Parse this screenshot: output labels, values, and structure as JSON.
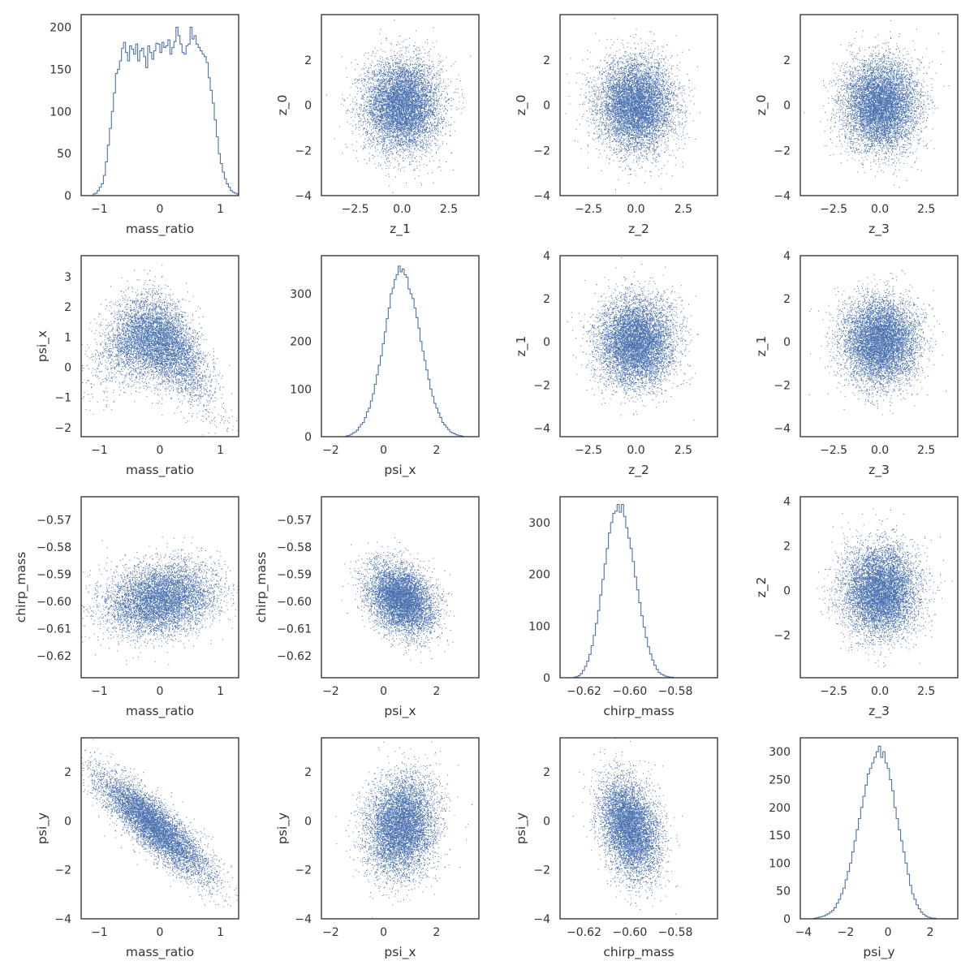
{
  "chart_data": {
    "type": "scatter",
    "layout": "pair-plot 4x4 (lower: scatter, diagonal: step histogram, upper: scatter of latent z)",
    "color": "#4c72b0",
    "background": "#ffffff",
    "grid": false,
    "panels": [
      {
        "id": "r0c0",
        "type": "histogram",
        "xlabel": "mass_ratio",
        "ylabel": "",
        "xlim": [
          -1.3,
          1.3
        ],
        "ylim": [
          0,
          215
        ],
        "xticks": [
          -1,
          0,
          1
        ],
        "xticklabels": [
          "−1",
          "0",
          "1"
        ],
        "yticks": [
          0,
          50,
          100,
          150,
          200
        ],
        "yticklabels": [
          "0",
          "50",
          "100",
          "150",
          "200"
        ],
        "bins": {
          "start": -1.1,
          "width": 0.0333,
          "counts": [
            2,
            3,
            6,
            10,
            14,
            24,
            40,
            60,
            80,
            100,
            122,
            145,
            150,
            160,
            175,
            182,
            170,
            160,
            178,
            174,
            168,
            180,
            160,
            172,
            175,
            165,
            152,
            178,
            170,
            162,
            172,
            181,
            180,
            170,
            182,
            176,
            178,
            185,
            168,
            176,
            183,
            200,
            190,
            180,
            170,
            168,
            178,
            180,
            200,
            186,
            190,
            180,
            176,
            172,
            168,
            165,
            158,
            140,
            125,
            110,
            90,
            70,
            50,
            38,
            28,
            20,
            14,
            10,
            6,
            4,
            3,
            2
          ]
        }
      },
      {
        "id": "r0c1",
        "type": "scatter",
        "xlabel": "z_1",
        "ylabel": "z_0",
        "xlim": [
          -4.3,
          4.1
        ],
        "ylim": [
          -4.0,
          4.0
        ],
        "xticks": [
          -2.5,
          0,
          2.5
        ],
        "xticklabels": [
          "−2.5",
          "0.0",
          "2.5"
        ],
        "yticks": [
          -4,
          -2,
          0,
          2
        ],
        "yticklabels": [
          "−4",
          "−2",
          "0",
          "2"
        ],
        "dist": {
          "mx": 0,
          "my": 0,
          "sx": 1,
          "sy": 1,
          "rho": 0,
          "n": 7000
        }
      },
      {
        "id": "r0c2",
        "type": "scatter",
        "xlabel": "z_2",
        "ylabel": "z_0",
        "xlim": [
          -4.0,
          4.3
        ],
        "ylim": [
          -4.0,
          4.0
        ],
        "xticks": [
          -2.5,
          0,
          2.5
        ],
        "xticklabels": [
          "−2.5",
          "0.0",
          "2.5"
        ],
        "yticks": [
          -4,
          -2,
          0,
          2
        ],
        "yticklabels": [
          "−4",
          "−2",
          "0",
          "2"
        ],
        "dist": {
          "mx": 0,
          "my": 0,
          "sx": 1,
          "sy": 1,
          "rho": 0,
          "n": 7000
        }
      },
      {
        "id": "r0c3",
        "type": "scatter",
        "xlabel": "z_3",
        "ylabel": "z_0",
        "xlim": [
          -4.3,
          4.2
        ],
        "ylim": [
          -4.0,
          4.0
        ],
        "xticks": [
          -2.5,
          0,
          2.5
        ],
        "xticklabels": [
          "−2.5",
          "0.0",
          "2.5"
        ],
        "yticks": [
          -4,
          -2,
          0,
          2
        ],
        "yticklabels": [
          "−4",
          "−2",
          "0",
          "2"
        ],
        "dist": {
          "mx": 0,
          "my": 0,
          "sx": 1,
          "sy": 1,
          "rho": 0,
          "n": 7000
        }
      },
      {
        "id": "r1c0",
        "type": "scatter",
        "xlabel": "mass_ratio",
        "ylabel": "psi_x",
        "xlim": [
          -1.3,
          1.3
        ],
        "ylim": [
          -2.3,
          3.7
        ],
        "xticks": [
          -1,
          0,
          1
        ],
        "xticklabels": [
          "−1",
          "0",
          "1"
        ],
        "yticks": [
          -2,
          -1,
          0,
          1,
          2,
          3
        ],
        "yticklabels": [
          "−2",
          "−1",
          "0",
          "1",
          "2",
          "3"
        ],
        "dist": {
          "mx": -0.05,
          "my": 0.7,
          "sx": 0.42,
          "sy": 0.75,
          "rho": -0.35,
          "curve": -1.3,
          "n": 6500
        }
      },
      {
        "id": "r1c1",
        "type": "histogram",
        "xlabel": "psi_x",
        "ylabel": "",
        "xlim": [
          -2.35,
          3.6
        ],
        "ylim": [
          0,
          380
        ],
        "xticks": [
          -2,
          0,
          2
        ],
        "xticklabels": [
          "−2",
          "0",
          "2"
        ],
        "yticks": [
          0,
          100,
          200,
          300
        ],
        "yticklabels": [
          "0",
          "100",
          "200",
          "300"
        ],
        "bins": {
          "start": -1.4,
          "width": 0.075,
          "counts": [
            2,
            3,
            5,
            8,
            10,
            14,
            20,
            26,
            30,
            40,
            52,
            60,
            75,
            90,
            110,
            130,
            150,
            170,
            195,
            220,
            248,
            270,
            300,
            312,
            330,
            340,
            358,
            346,
            352,
            340,
            335,
            310,
            300,
            290,
            270,
            250,
            228,
            200,
            180,
            160,
            140,
            120,
            100,
            85,
            70,
            60,
            50,
            40,
            30,
            25,
            20,
            15,
            10,
            8,
            6,
            4,
            3,
            2,
            1
          ]
        }
      },
      {
        "id": "r1c2",
        "type": "scatter",
        "xlabel": "z_2",
        "ylabel": "z_1",
        "xlim": [
          -4.0,
          4.3
        ],
        "ylim": [
          -4.4,
          4.0
        ],
        "xticks": [
          -2.5,
          0,
          2.5
        ],
        "xticklabels": [
          "−2.5",
          "0.0",
          "2.5"
        ],
        "yticks": [
          -4,
          -2,
          0,
          2,
          4
        ],
        "yticklabels": [
          "−4",
          "−2",
          "0",
          "2",
          "4"
        ],
        "dist": {
          "mx": 0,
          "my": 0,
          "sx": 1,
          "sy": 1,
          "rho": 0,
          "n": 7000
        }
      },
      {
        "id": "r1c3",
        "type": "scatter",
        "xlabel": "z_3",
        "ylabel": "z_1",
        "xlim": [
          -4.3,
          4.2
        ],
        "ylim": [
          -4.4,
          4.0
        ],
        "xticks": [
          -2.5,
          0,
          2.5
        ],
        "xticklabels": [
          "−2.5",
          "0.0",
          "2.5"
        ],
        "yticks": [
          -4,
          -2,
          0,
          2,
          4
        ],
        "yticklabels": [
          "−4",
          "−2",
          "0",
          "2",
          "4"
        ],
        "dist": {
          "mx": 0,
          "my": 0,
          "sx": 1,
          "sy": 1,
          "rho": 0,
          "n": 7000
        }
      },
      {
        "id": "r2c0",
        "type": "scatter",
        "xlabel": "mass_ratio",
        "ylabel": "chirp_mass",
        "xlim": [
          -1.3,
          1.3
        ],
        "ylim": [
          -0.628,
          -0.5615
        ],
        "xticks": [
          -1,
          0,
          1
        ],
        "xticklabels": [
          "−1",
          "0",
          "1"
        ],
        "yticks": [
          -0.62,
          -0.61,
          -0.6,
          -0.59,
          -0.58,
          -0.57
        ],
        "yticklabels": [
          "−0.62",
          "−0.61",
          "−0.60",
          "−0.59",
          "−0.58",
          "−0.57"
        ],
        "dist": {
          "mx": 0,
          "my": -0.599,
          "sx": 0.45,
          "sy": 0.0065,
          "rho": 0.18,
          "n": 6000
        }
      },
      {
        "id": "r2c1",
        "type": "scatter",
        "xlabel": "psi_x",
        "ylabel": "chirp_mass",
        "xlim": [
          -2.35,
          3.6
        ],
        "ylim": [
          -0.628,
          -0.5615
        ],
        "xticks": [
          -2,
          0,
          2
        ],
        "xticklabels": [
          "−2",
          "0",
          "2"
        ],
        "yticks": [
          -0.62,
          -0.61,
          -0.6,
          -0.59,
          -0.58,
          -0.57
        ],
        "yticklabels": [
          "−0.62",
          "−0.61",
          "−0.60",
          "−0.59",
          "−0.58",
          "−0.57"
        ],
        "dist": {
          "mx": 0.65,
          "my": -0.599,
          "sx": 0.62,
          "sy": 0.0065,
          "rho": -0.3,
          "n": 6000
        }
      },
      {
        "id": "r2c2",
        "type": "histogram",
        "xlabel": "chirp_mass",
        "ylabel": "",
        "xlim": [
          -0.6305,
          -0.5615
        ],
        "ylim": [
          0,
          350
        ],
        "xticks": [
          -0.62,
          -0.6,
          -0.58
        ],
        "xticklabels": [
          "−0.62",
          "−0.60",
          "−0.58"
        ],
        "yticks": [
          0,
          100,
          200,
          300
        ],
        "yticklabels": [
          "0",
          "100",
          "200",
          "300"
        ],
        "bins": {
          "start": -0.6245,
          "width": 0.00095,
          "counts": [
            1,
            2,
            4,
            8,
            14,
            22,
            32,
            45,
            62,
            82,
            105,
            130,
            160,
            190,
            220,
            250,
            280,
            300,
            318,
            322,
            335,
            320,
            335,
            312,
            290,
            270,
            250,
            225,
            195,
            170,
            145,
            120,
            98,
            78,
            60,
            46,
            34,
            24,
            16,
            10,
            7,
            5,
            3,
            2,
            1,
            1
          ]
        }
      },
      {
        "id": "r2c3",
        "type": "scatter",
        "xlabel": "z_3",
        "ylabel": "z_2",
        "xlim": [
          -4.3,
          4.2
        ],
        "ylim": [
          -3.9,
          4.2
        ],
        "xticks": [
          -2.5,
          0,
          2.5
        ],
        "xticklabels": [
          "−2.5",
          "0.0",
          "2.5"
        ],
        "yticks": [
          -2,
          0,
          2,
          4
        ],
        "yticklabels": [
          "−2",
          "0",
          "2",
          "4"
        ],
        "dist": {
          "mx": 0,
          "my": 0,
          "sx": 1,
          "sy": 1,
          "rho": 0,
          "n": 7000
        }
      },
      {
        "id": "r3c0",
        "type": "scatter",
        "xlabel": "mass_ratio",
        "ylabel": "psi_y",
        "xlim": [
          -1.3,
          1.3
        ],
        "ylim": [
          -4.0,
          3.4
        ],
        "xticks": [
          -1,
          0,
          1
        ],
        "xticklabels": [
          "−1",
          "0",
          "1"
        ],
        "yticks": [
          -4,
          -2,
          0,
          2
        ],
        "yticklabels": [
          "−4",
          "−2",
          "0",
          "2"
        ],
        "dist": {
          "mx": -0.1,
          "my": -0.2,
          "sx": 0.45,
          "sy": 1.05,
          "rho": -0.86,
          "n": 6500
        }
      },
      {
        "id": "r3c1",
        "type": "scatter",
        "xlabel": "psi_x",
        "ylabel": "psi_y",
        "xlim": [
          -2.35,
          3.6
        ],
        "ylim": [
          -4.0,
          3.4
        ],
        "xticks": [
          -2,
          0,
          2
        ],
        "xticklabels": [
          "−2",
          "0",
          "2"
        ],
        "yticks": [
          -4,
          -2,
          0,
          2
        ],
        "yticklabels": [
          "−4",
          "−2",
          "0",
          "2"
        ],
        "dist": {
          "mx": 0.65,
          "my": -0.2,
          "sx": 0.65,
          "sy": 1.0,
          "rho": 0.12,
          "n": 6500
        }
      },
      {
        "id": "r3c2",
        "type": "scatter",
        "xlabel": "chirp_mass",
        "ylabel": "psi_y",
        "xlim": [
          -0.6305,
          -0.5615
        ],
        "ylim": [
          -4.0,
          3.4
        ],
        "xticks": [
          -0.62,
          -0.6,
          -0.58
        ],
        "xticklabels": [
          "−0.62",
          "−0.60",
          "−0.58"
        ],
        "yticks": [
          -4,
          -2,
          0,
          2
        ],
        "yticklabels": [
          "−4",
          "−2",
          "0",
          "2"
        ],
        "dist": {
          "mx": -0.6,
          "my": -0.25,
          "sx": 0.0065,
          "sy": 1.0,
          "rho": -0.32,
          "n": 6000
        }
      },
      {
        "id": "r3c3",
        "type": "histogram",
        "xlabel": "psi_y",
        "ylabel": "",
        "xlim": [
          -4.15,
          3.3
        ],
        "ylim": [
          0,
          325
        ],
        "xticks": [
          -4,
          -2,
          0,
          2
        ],
        "xticklabels": [
          "−4",
          "−2",
          "0",
          "2"
        ],
        "yticks": [
          0,
          50,
          100,
          150,
          200,
          250,
          300
        ],
        "yticklabels": [
          "0",
          "50",
          "100",
          "150",
          "200",
          "250",
          "300"
        ],
        "bins": {
          "start": -3.5,
          "width": 0.105,
          "counts": [
            1,
            2,
            3,
            4,
            5,
            7,
            9,
            12,
            15,
            20,
            28,
            35,
            45,
            55,
            70,
            85,
            100,
            120,
            140,
            160,
            180,
            200,
            220,
            240,
            260,
            270,
            280,
            290,
            300,
            310,
            290,
            300,
            280,
            270,
            250,
            230,
            200,
            180,
            160,
            140,
            120,
            100,
            80,
            60,
            45,
            35,
            25,
            18,
            12,
            8,
            5,
            3,
            2,
            1,
            1
          ]
        }
      }
    ]
  }
}
